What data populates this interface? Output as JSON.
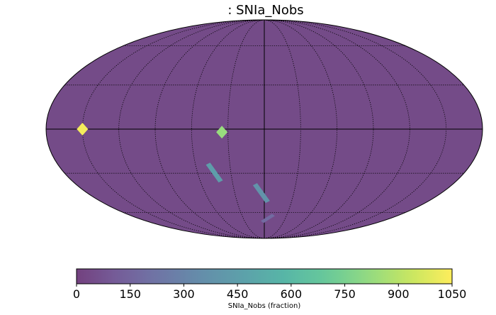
{
  "chart_data": {
    "type": "heatmap",
    "projection": "mollweide",
    "title": ": SNIa_Nobs",
    "colorbar": {
      "label": "SNIa_Nobs (fraction)",
      "min": 0,
      "max": 1050,
      "ticks": [
        "0",
        "150",
        "300",
        "450",
        "600",
        "750",
        "900",
        "1050"
      ],
      "colormap": [
        "#440154",
        "#482878",
        "#3e4989",
        "#31688e",
        "#26828e",
        "#1f9e89",
        "#35b779",
        "#6ece58",
        "#b5de2b",
        "#fde725"
      ],
      "alpha": 0.75
    },
    "background_level": 40,
    "regions": [
      {
        "lon": 150,
        "lat": 0,
        "value": 1030,
        "shape": "diamond"
      },
      {
        "lon": 35,
        "lat": -2,
        "value": 830,
        "shape": "diamond"
      },
      {
        "lon": 45,
        "lat": -30,
        "value": 440,
        "shape": "strip"
      },
      {
        "lon": 3,
        "lat": -45,
        "value": 380,
        "shape": "strip"
      },
      {
        "lon": -5,
        "lat": -65,
        "value": 180,
        "shape": "patch"
      }
    ],
    "graticule": {
      "meridian_step_deg": 30,
      "parallel_step_deg": 30
    }
  }
}
